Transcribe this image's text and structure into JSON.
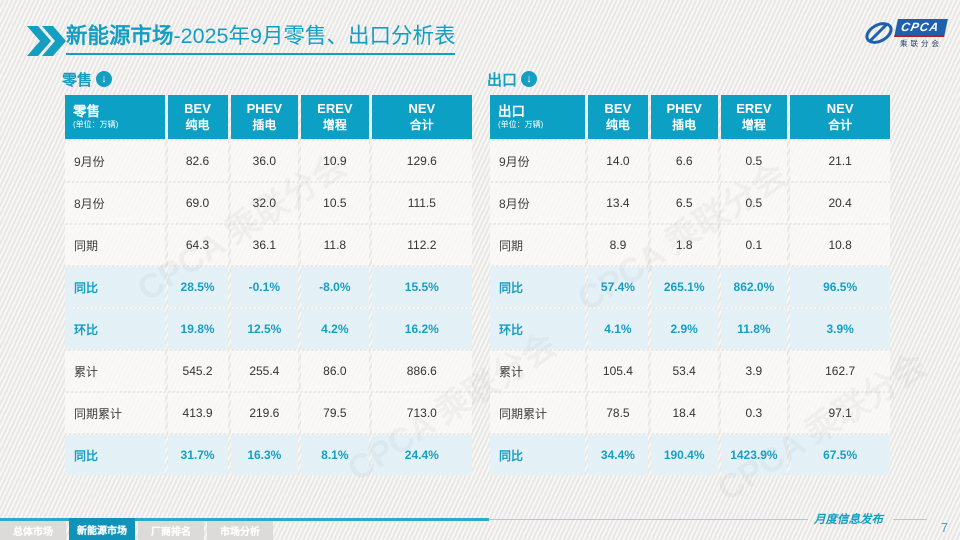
{
  "header": {
    "title_bold": "新能源市场",
    "title_rest": "-2025年9月零售、出口分析表"
  },
  "logo": {
    "text": "CPCA",
    "subtitle": "乘联分会"
  },
  "watermark": "CPCA 乘联分会",
  "sections": [
    {
      "label": "零售",
      "unit": "(单位：万辆)",
      "columns": [
        {
          "en": "BEV",
          "cn": "纯电"
        },
        {
          "en": "PHEV",
          "cn": "插电"
        },
        {
          "en": "EREV",
          "cn": "增程"
        },
        {
          "en": "NEV",
          "cn": "合计"
        }
      ],
      "rows": [
        {
          "label": "9月份",
          "values": [
            "82.6",
            "36.0",
            "10.9",
            "129.6"
          ],
          "highlight": false
        },
        {
          "label": "8月份",
          "values": [
            "69.0",
            "32.0",
            "10.5",
            "111.5"
          ],
          "highlight": false
        },
        {
          "label": "同期",
          "values": [
            "64.3",
            "36.1",
            "11.8",
            "112.2"
          ],
          "highlight": false
        },
        {
          "label": "同比",
          "values": [
            "28.5%",
            "-0.1%",
            "-8.0%",
            "15.5%"
          ],
          "highlight": true
        },
        {
          "label": "环比",
          "values": [
            "19.8%",
            "12.5%",
            "4.2%",
            "16.2%"
          ],
          "highlight": true
        },
        {
          "label": "累计",
          "values": [
            "545.2",
            "255.4",
            "86.0",
            "886.6"
          ],
          "highlight": false
        },
        {
          "label": "同期累计",
          "values": [
            "413.9",
            "219.6",
            "79.5",
            "713.0"
          ],
          "highlight": false
        },
        {
          "label": "同比",
          "values": [
            "31.7%",
            "16.3%",
            "8.1%",
            "24.4%"
          ],
          "highlight": true
        }
      ]
    },
    {
      "label": "出口",
      "unit": "(单位：万辆)",
      "columns": [
        {
          "en": "BEV",
          "cn": "纯电"
        },
        {
          "en": "PHEV",
          "cn": "插电"
        },
        {
          "en": "EREV",
          "cn": "增程"
        },
        {
          "en": "NEV",
          "cn": "合计"
        }
      ],
      "rows": [
        {
          "label": "9月份",
          "values": [
            "14.0",
            "6.6",
            "0.5",
            "21.1"
          ],
          "highlight": false
        },
        {
          "label": "8月份",
          "values": [
            "13.4",
            "6.5",
            "0.5",
            "20.4"
          ],
          "highlight": false
        },
        {
          "label": "同期",
          "values": [
            "8.9",
            "1.8",
            "0.1",
            "10.8"
          ],
          "highlight": false
        },
        {
          "label": "同比",
          "values": [
            "57.4%",
            "265.1%",
            "862.0%",
            "96.5%"
          ],
          "highlight": true
        },
        {
          "label": "环比",
          "values": [
            "4.1%",
            "2.9%",
            "11.8%",
            "3.9%"
          ],
          "highlight": true
        },
        {
          "label": "累计",
          "values": [
            "105.4",
            "53.4",
            "3.9",
            "162.7"
          ],
          "highlight": false
        },
        {
          "label": "同期累计",
          "values": [
            "78.5",
            "18.4",
            "0.3",
            "97.1"
          ],
          "highlight": false
        },
        {
          "label": "同比",
          "values": [
            "34.4%",
            "190.4%",
            "1423.9%",
            "67.5%"
          ],
          "highlight": true
        }
      ]
    }
  ],
  "footer": {
    "tabs": [
      {
        "label": "总体市场",
        "active": false
      },
      {
        "label": "新能源市场",
        "active": true
      },
      {
        "label": "厂商排名",
        "active": false
      },
      {
        "label": "市场分析",
        "active": false
      }
    ],
    "note": "月度信息发布",
    "page": "7"
  },
  "colors": {
    "accent": "#149FC2",
    "table_header_bg": "#0CA0C4",
    "highlight_row_bg": "#E2F1F7",
    "highlight_text": "#189EC2",
    "logo_blue": "#1E5FAE",
    "logo_red": "#C01920"
  }
}
